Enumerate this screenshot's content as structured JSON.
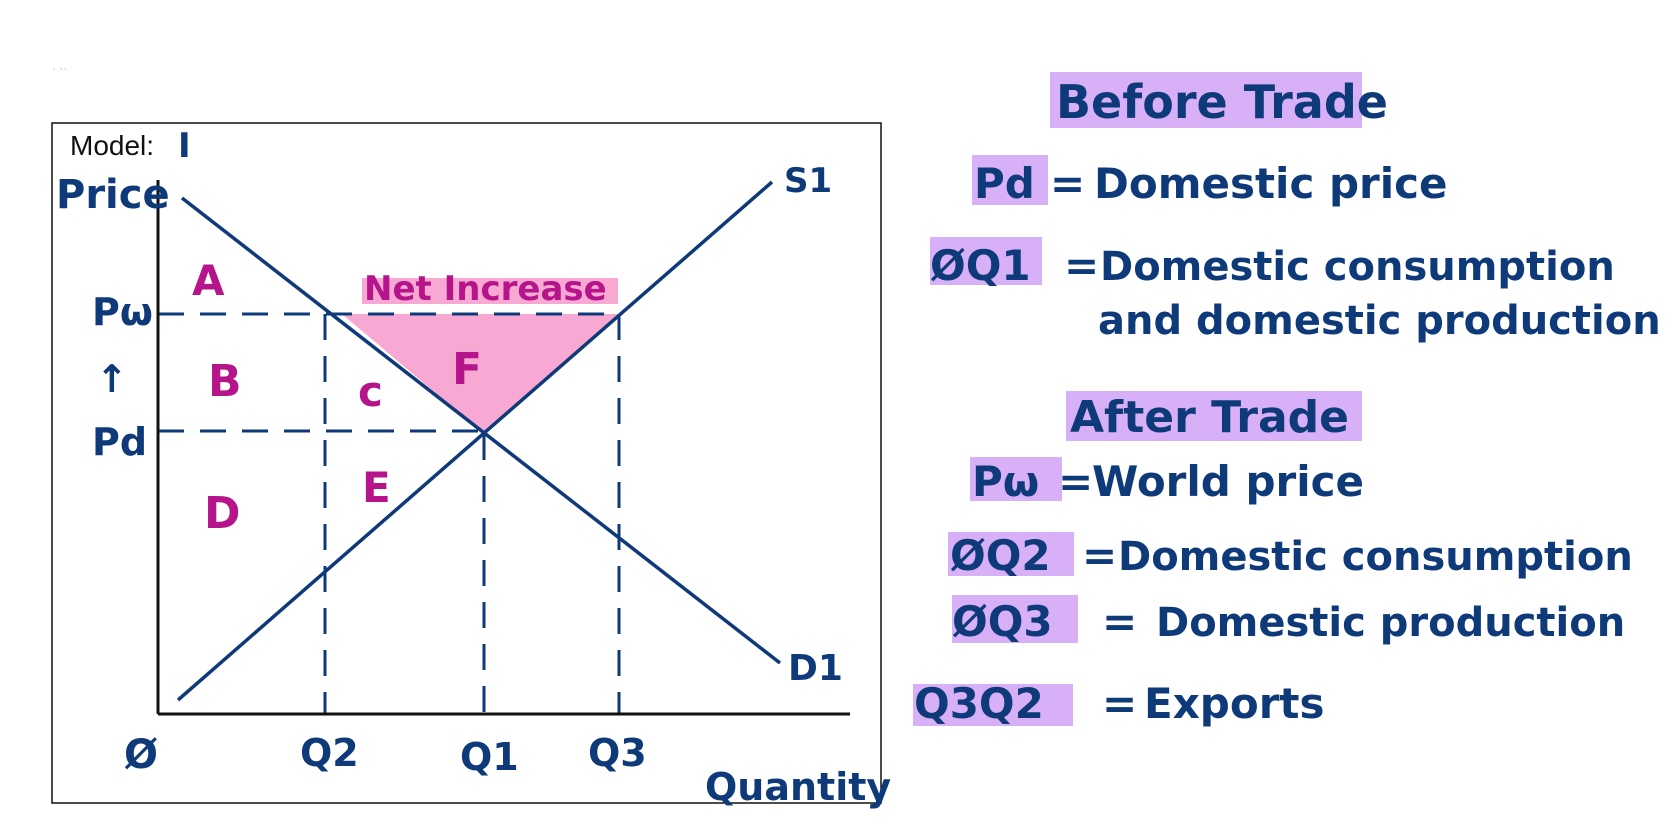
{
  "corner_note": "· ·· ",
  "graph": {
    "model_label": "Model:",
    "model_number": "I",
    "y_axis_label": "Price",
    "x_axis_label": "Quantity",
    "origin_label": "Ø",
    "price_labels": {
      "pw": "Pω",
      "arrow": "↑",
      "pd": "Pd"
    },
    "quantity_labels": {
      "q2": "Q2",
      "q1": "Q1",
      "q3": "Q3"
    },
    "curve_labels": {
      "supply": "S1",
      "demand": "D1"
    },
    "area_labels": {
      "a": "A",
      "b": "B",
      "c": "c",
      "d": "D",
      "e": "E",
      "f": "F"
    },
    "net_increase_label": "Net Increase"
  },
  "notes": {
    "before_title": "Before Trade",
    "before_items": [
      {
        "key": "Pd",
        "sep": "=",
        "text": "Domestic price"
      },
      {
        "key": "ØQ1",
        "sep": "=",
        "text": "Domestic consumption"
      }
    ],
    "before_continuation": "and domestic production",
    "after_title": "After Trade",
    "after_items": [
      {
        "key": "Pω",
        "sep": "=",
        "text": "World price"
      },
      {
        "key": "ØQ2",
        "sep": "=",
        "text": "Domestic consumption"
      },
      {
        "key": "ØQ3",
        "sep": "=",
        "text": "Domestic production"
      },
      {
        "key": "Q3Q2",
        "sep": "=",
        "text": "Exports"
      }
    ]
  },
  "colors": {
    "ink": "#0e3a7a",
    "accent_ink": "#b5148a",
    "net_increase_fill": "#f7a9d3",
    "highlight": "#d8b0f7",
    "box_border": "#111111"
  }
}
